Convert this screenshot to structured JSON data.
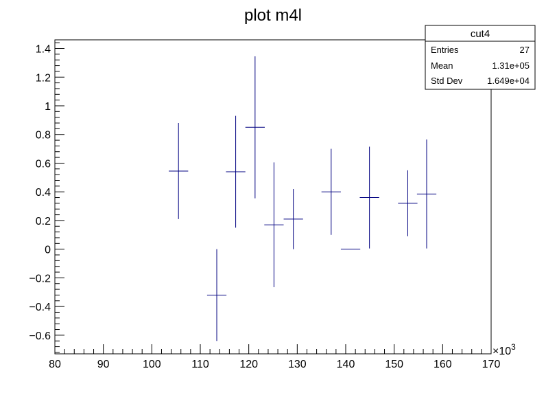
{
  "chart_data": {
    "type": "scatter",
    "title": "plot m4l",
    "xlabel": "",
    "ylabel": "",
    "x_multiplier_label": "×10",
    "x_multiplier_exponent": "3",
    "xlim": [
      80,
      170
    ],
    "ylim": [
      -0.73,
      1.46
    ],
    "x_ticks": [
      80,
      90,
      100,
      110,
      120,
      130,
      140,
      150,
      160,
      170
    ],
    "y_ticks": [
      -0.6,
      -0.4,
      -0.2,
      0,
      0.2,
      0.4,
      0.6,
      0.8,
      1,
      1.2,
      1.4
    ],
    "x_tick_labels": [
      "80",
      "90",
      "100",
      "110",
      "120",
      "130",
      "140",
      "150",
      "160",
      "170"
    ],
    "y_tick_labels": [
      "−0.6",
      "−0.4",
      "−0.2",
      "0",
      "0.2",
      "0.4",
      "0.6",
      "0.8",
      "1",
      "1.2",
      "1.4"
    ],
    "grid": false,
    "marker_color": "#000080",
    "points": [
      {
        "x": 105.5,
        "xerr": 2,
        "y": 0.545,
        "yerr": 0.335
      },
      {
        "x": 113.4,
        "xerr": 2,
        "y": -0.32,
        "yerr": 0.32
      },
      {
        "x": 117.3,
        "xerr": 2,
        "y": 0.54,
        "yerr": 0.39
      },
      {
        "x": 121.3,
        "xerr": 2,
        "y": 0.85,
        "yerr": 0.495
      },
      {
        "x": 125.2,
        "xerr": 2,
        "y": 0.17,
        "yerr": 0.435
      },
      {
        "x": 129.2,
        "xerr": 2,
        "y": 0.21,
        "yerr": 0.21
      },
      {
        "x": 137.0,
        "xerr": 2,
        "y": 0.4,
        "yerr": 0.3
      },
      {
        "x": 141.0,
        "xerr": 2,
        "y": 0.0,
        "yerr": 0.0
      },
      {
        "x": 144.9,
        "xerr": 2,
        "y": 0.36,
        "yerr": 0.355
      },
      {
        "x": 152.8,
        "xerr": 2,
        "y": 0.32,
        "yerr": 0.23
      },
      {
        "x": 156.7,
        "xerr": 2,
        "y": 0.385,
        "yerr": 0.38
      }
    ],
    "stats_box": {
      "title": "cut4",
      "rows": [
        {
          "label": "Entries",
          "value": "27"
        },
        {
          "label": "Mean",
          "value": "1.31e+05"
        },
        {
          "label": "Std Dev",
          "value": "1.649e+04"
        }
      ],
      "placement": "top-right"
    }
  }
}
